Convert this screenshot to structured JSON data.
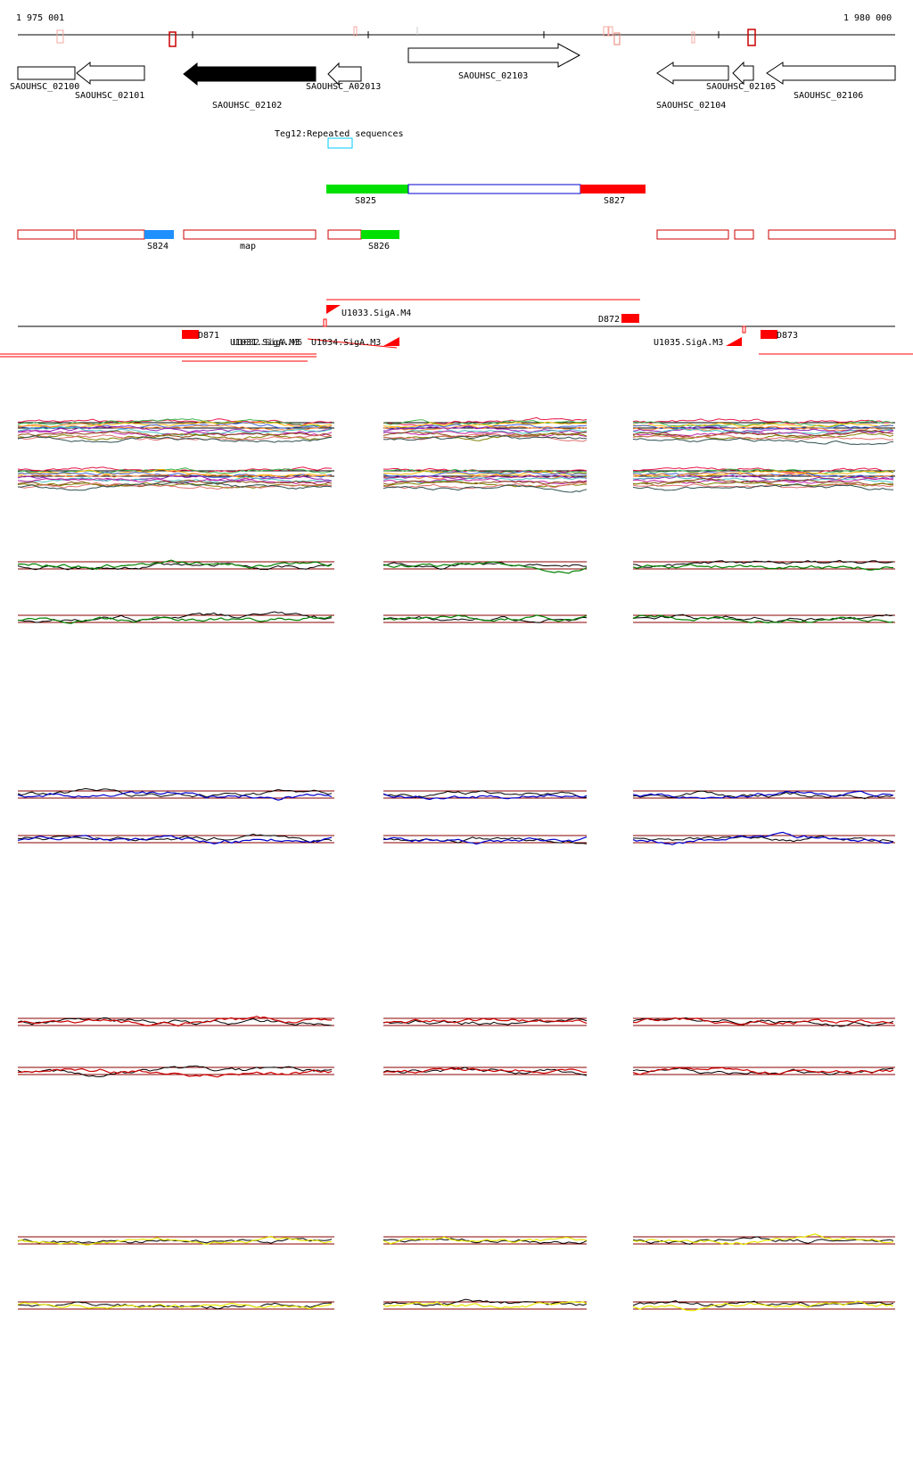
{
  "coords": {
    "start": "1 975 001",
    "end": "1 980 000"
  },
  "genes": [
    {
      "label": "SAOUHSC_02100",
      "dir": "right",
      "fill": "none"
    },
    {
      "label": "SAOUHSC_02101",
      "dir": "left",
      "fill": "none"
    },
    {
      "label": "SAOUHSC_02102",
      "dir": "left",
      "fill": "#000000"
    },
    {
      "label": "SAOUHSC_A02013",
      "dir": "left",
      "fill": "none"
    },
    {
      "label": "SAOUHSC_02103",
      "dir": "right",
      "fill": "none"
    },
    {
      "label": "SAOUHSC_02104",
      "dir": "left",
      "fill": "none"
    },
    {
      "label": "SAOUHSC_02105",
      "dir": "left",
      "fill": "none"
    },
    {
      "label": "SAOUHSC_02106",
      "dir": "left",
      "fill": "none"
    }
  ],
  "repeat": {
    "label": "Teg12:Repeated sequences",
    "color": "#00c8ff"
  },
  "segments_upper": [
    {
      "label": "S825",
      "color": "#00e000"
    },
    {
      "label": "",
      "color": "#ffffff"
    },
    {
      "label": "S827",
      "color": "#ff0000"
    }
  ],
  "segments_lower": [
    {
      "label": "",
      "color": "#ffffff"
    },
    {
      "label": "S824",
      "color": "#1e90ff"
    },
    {
      "label": "map",
      "color": "#ffffff"
    },
    {
      "label": "S826",
      "color": "#00e000"
    }
  ],
  "features": {
    "d_labels": [
      "D871",
      "D872",
      "D873"
    ],
    "u_labels": [
      "U1033.SigA.M4",
      "U1031.SigA.M3",
      "U1032.SigA.M5",
      "U1034.SigA.M3",
      "U1035.SigA.M3"
    ]
  },
  "panel_colors": {
    "multi": "multicolor",
    "green": "#008000",
    "blue": "#0000cd",
    "red": "#cc0000",
    "yellow": "#e6e600",
    "reference": "#000000",
    "threshold": "#8b0000"
  }
}
